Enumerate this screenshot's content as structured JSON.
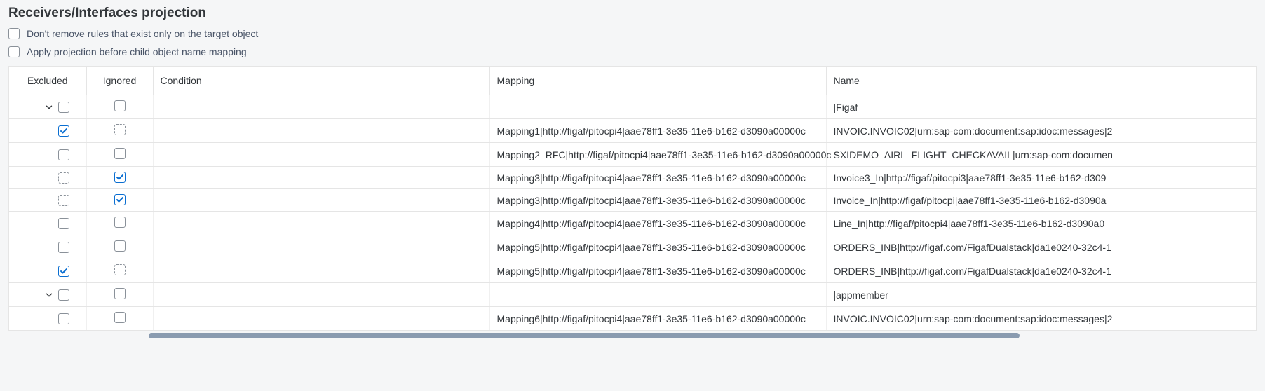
{
  "title": "Receivers/Interfaces projection",
  "options": {
    "dont_remove": {
      "label": "Don't remove rules that exist only on the target object",
      "checked": false
    },
    "apply_projection": {
      "label": "Apply projection before child object name mapping",
      "checked": false
    }
  },
  "table": {
    "columns": {
      "excluded": "Excluded",
      "ignored": "Ignored",
      "condition": "Condition",
      "mapping": "Mapping",
      "name": "Name"
    },
    "rows": [
      {
        "type": "group",
        "expanded": true,
        "excluded": {
          "checked": false,
          "dashed": false
        },
        "ignored": {
          "checked": false,
          "dashed": false
        },
        "condition": "",
        "mapping": "",
        "name": "|Figaf"
      },
      {
        "type": "child",
        "excluded": {
          "checked": true,
          "dashed": false
        },
        "ignored": {
          "checked": false,
          "dashed": true
        },
        "condition": "",
        "mapping": "Mapping1|http://figaf/pitocpi4|aae78ff1-3e35-11e6-b162-d3090a00000c",
        "name": "INVOIC.INVOIC02|urn:sap-com:document:sap:idoc:messages|2"
      },
      {
        "type": "child",
        "excluded": {
          "checked": false,
          "dashed": false
        },
        "ignored": {
          "checked": false,
          "dashed": false
        },
        "condition": "",
        "mapping": "Mapping2_RFC|http://figaf/pitocpi4|aae78ff1-3e35-11e6-b162-d3090a00000c",
        "name": "SXIDEMO_AIRL_FLIGHT_CHECKAVAIL|urn:sap-com:documen"
      },
      {
        "type": "child",
        "excluded": {
          "checked": false,
          "dashed": true
        },
        "ignored": {
          "checked": true,
          "dashed": false
        },
        "condition": "",
        "mapping": "Mapping3|http://figaf/pitocpi4|aae78ff1-3e35-11e6-b162-d3090a00000c",
        "name": "Invoice3_In|http://figaf/pitocpi3|aae78ff1-3e35-11e6-b162-d309"
      },
      {
        "type": "child",
        "excluded": {
          "checked": false,
          "dashed": true
        },
        "ignored": {
          "checked": true,
          "dashed": false
        },
        "condition": "",
        "mapping": "Mapping3|http://figaf/pitocpi4|aae78ff1-3e35-11e6-b162-d3090a00000c",
        "name": "Invoice_In|http://figaf/pitocpi|aae78ff1-3e35-11e6-b162-d3090a"
      },
      {
        "type": "child",
        "excluded": {
          "checked": false,
          "dashed": false
        },
        "ignored": {
          "checked": false,
          "dashed": false
        },
        "condition": "",
        "mapping": "Mapping4|http://figaf/pitocpi4|aae78ff1-3e35-11e6-b162-d3090a00000c",
        "name": "Line_In|http://figaf/pitocpi4|aae78ff1-3e35-11e6-b162-d3090a0"
      },
      {
        "type": "child",
        "excluded": {
          "checked": false,
          "dashed": false
        },
        "ignored": {
          "checked": false,
          "dashed": false
        },
        "condition": "",
        "mapping": "Mapping5|http://figaf/pitocpi4|aae78ff1-3e35-11e6-b162-d3090a00000c",
        "name": "ORDERS_INB|http://figaf.com/FigafDualstack|da1e0240-32c4-1"
      },
      {
        "type": "child",
        "excluded": {
          "checked": true,
          "dashed": false
        },
        "ignored": {
          "checked": false,
          "dashed": true
        },
        "condition": "",
        "mapping": "Mapping5|http://figaf/pitocpi4|aae78ff1-3e35-11e6-b162-d3090a00000c",
        "name": "ORDERS_INB|http://figaf.com/FigafDualstack|da1e0240-32c4-1"
      },
      {
        "type": "group",
        "expanded": true,
        "excluded": {
          "checked": false,
          "dashed": false
        },
        "ignored": {
          "checked": false,
          "dashed": false
        },
        "condition": "",
        "mapping": "",
        "name": "|appmember"
      },
      {
        "type": "child",
        "excluded": {
          "checked": false,
          "dashed": false
        },
        "ignored": {
          "checked": false,
          "dashed": false
        },
        "condition": "",
        "mapping": "Mapping6|http://figaf/pitocpi4|aae78ff1-3e35-11e6-b162-d3090a00000c",
        "name": "INVOIC.INVOIC02|urn:sap-com:document:sap:idoc:messages|2"
      }
    ]
  },
  "colors": {
    "accent": "#0a6ed1",
    "border": "#e5e5e5",
    "text": "#32363a"
  }
}
